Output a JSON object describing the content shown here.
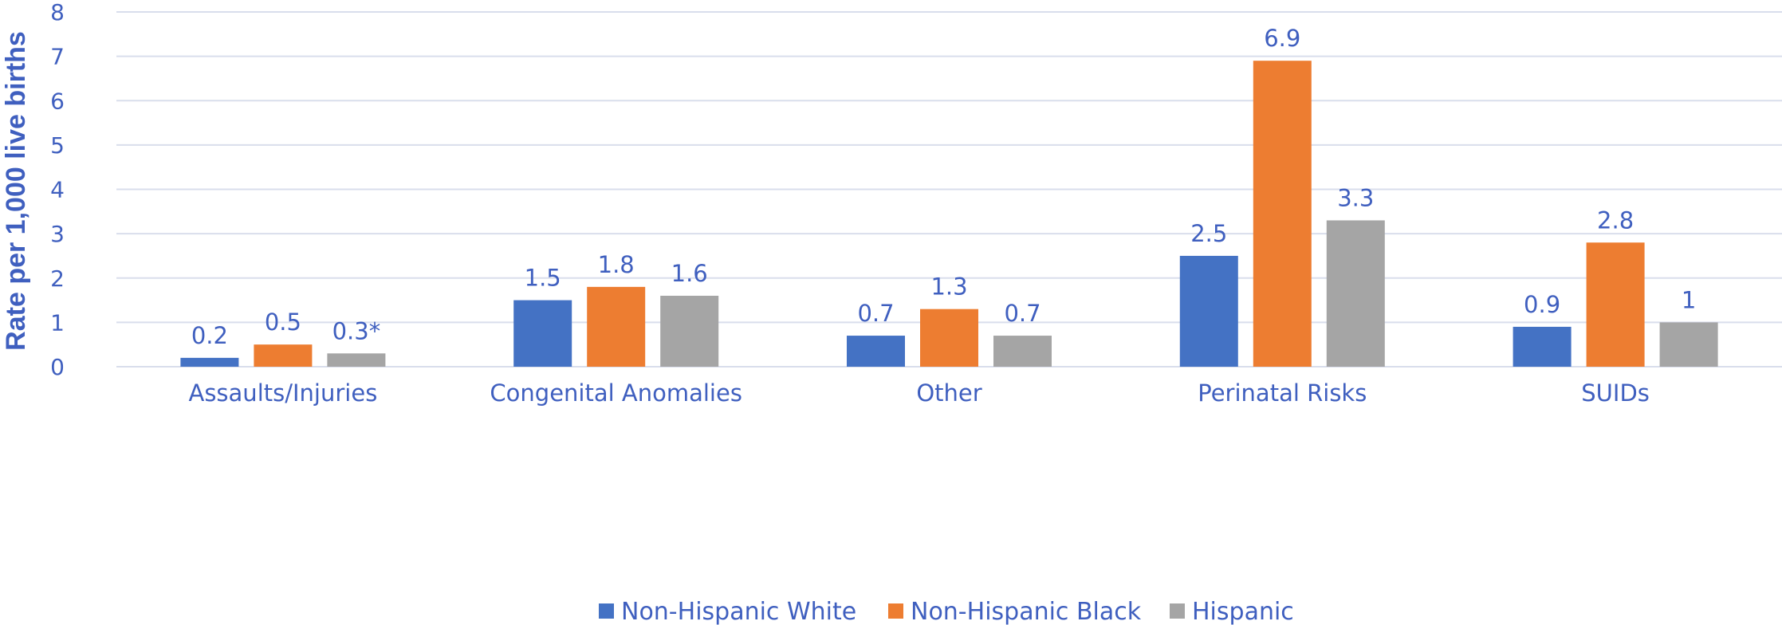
{
  "chart_data": {
    "type": "bar",
    "title": "",
    "xlabel": "",
    "ylabel": "Rate per 1,000 live births",
    "ylim": [
      0,
      8
    ],
    "yticks": [
      0,
      1,
      2,
      3,
      4,
      5,
      6,
      7,
      8
    ],
    "grid": true,
    "legend_position": "bottom",
    "categories": [
      "Assaults/Injuries",
      "Congenital Anomalies",
      "Other",
      "Perinatal Risks",
      "SUIDs"
    ],
    "series": [
      {
        "name": "Non-Hispanic White",
        "color": "#4472C4",
        "values": [
          0.2,
          1.5,
          0.7,
          2.5,
          0.9
        ],
        "labels": [
          "0.2",
          "1.5",
          "0.7",
          "2.5",
          "0.9"
        ]
      },
      {
        "name": "Non-Hispanic Black",
        "color": "#ED7D31",
        "values": [
          0.5,
          1.8,
          1.3,
          6.9,
          2.8
        ],
        "labels": [
          "0.5",
          "1.8",
          "1.3",
          "6.9",
          "2.8"
        ]
      },
      {
        "name": "Hispanic",
        "color": "#A5A5A5",
        "values": [
          0.3,
          1.6,
          0.7,
          3.3,
          1.0
        ],
        "labels": [
          "0.3*",
          "1.6",
          "0.7",
          "3.3",
          "1"
        ]
      }
    ],
    "colors": {
      "text": "#3F5FBF",
      "grid": "#D9DEEC"
    }
  }
}
